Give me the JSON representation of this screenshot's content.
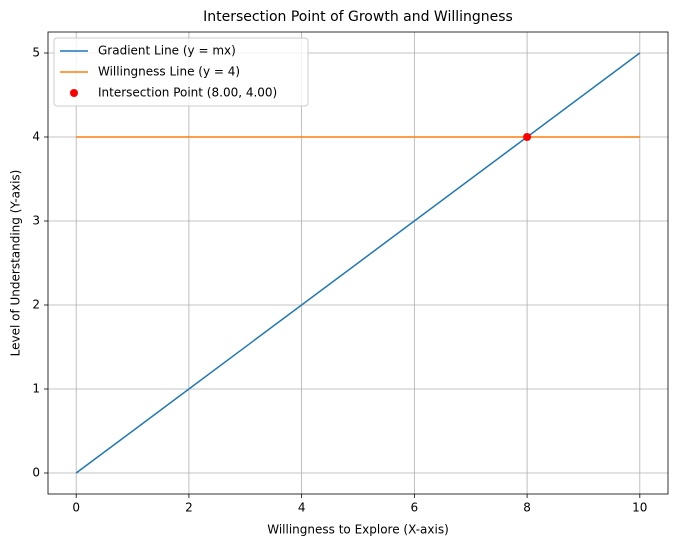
{
  "chart_data": {
    "type": "line",
    "title": "Intersection Point of Growth and Willingness",
    "x_label": "Willingness to Explore (X-axis)",
    "y_label": "Level of Understanding (Y-axis)",
    "series": [
      {
        "name": "Gradient Line (y = mx)",
        "color": "#1f77b4",
        "kind": "line",
        "x": [
          0,
          10
        ],
        "values": [
          0,
          5
        ]
      },
      {
        "name": "Willingness Line (y = 4)",
        "color": "#ff7f0e",
        "kind": "line",
        "x": [
          0,
          10
        ],
        "values": [
          4,
          4
        ]
      },
      {
        "name": "Intersection Point (8.00, 4.00)",
        "color": "#ff0000",
        "kind": "scatter",
        "x": [
          8
        ],
        "values": [
          4
        ]
      }
    ],
    "xlim": [
      -0.5,
      10.5
    ],
    "ylim": [
      -0.25,
      5.25
    ],
    "xticks": [
      0,
      2,
      4,
      6,
      8,
      10
    ],
    "yticks": [
      0,
      1,
      2,
      3,
      4,
      5
    ],
    "grid": true,
    "legend": "upper-left"
  }
}
